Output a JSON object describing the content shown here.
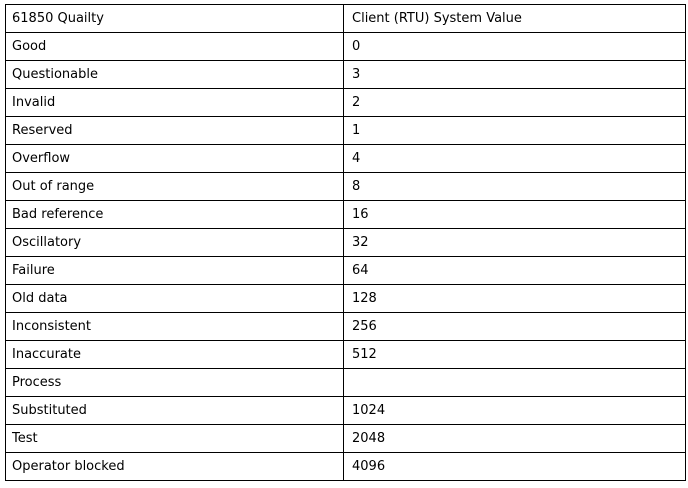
{
  "table": {
    "headers": [
      "61850 Quailty",
      "Client (RTU) System Value"
    ],
    "rows": [
      {
        "quality": "Good",
        "value": "0"
      },
      {
        "quality": "Questionable",
        "value": "3"
      },
      {
        "quality": "Invalid",
        "value": "2"
      },
      {
        "quality": "Reserved",
        "value": "1"
      },
      {
        "quality": "Overflow",
        "value": "4"
      },
      {
        "quality": "Out of range",
        "value": "8"
      },
      {
        "quality": "Bad reference",
        "value": "16"
      },
      {
        "quality": "Oscillatory",
        "value": "32"
      },
      {
        "quality": "Failure",
        "value": "64"
      },
      {
        "quality": "Old data",
        "value": "128"
      },
      {
        "quality": "Inconsistent",
        "value": "256"
      },
      {
        "quality": "Inaccurate",
        "value": "512"
      },
      {
        "quality": "Process",
        "value": ""
      },
      {
        "quality": "Substituted",
        "value": "1024"
      },
      {
        "quality": "Test",
        "value": "2048"
      },
      {
        "quality": "Operator blocked",
        "value": "4096"
      }
    ]
  }
}
